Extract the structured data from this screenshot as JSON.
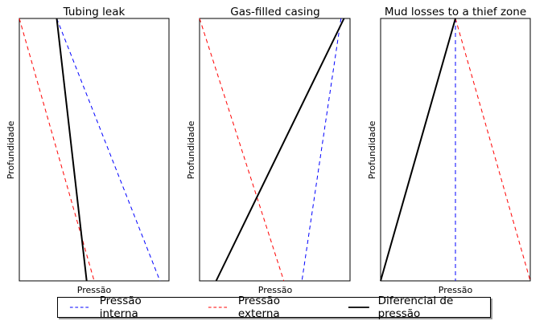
{
  "chart_data": [
    {
      "type": "line",
      "title": "Tubing leak",
      "xlabel": "Pressão",
      "ylabel": "Profundidade",
      "xlim": [
        0,
        10
      ],
      "ylim": [
        0,
        10
      ],
      "y_inverted": true,
      "series": [
        {
          "name": "Pressão interna",
          "x": [
            2.5,
            9.4
          ],
          "y": [
            0,
            10
          ],
          "color": "#0000ff",
          "style": "dashed"
        },
        {
          "name": "Pressão externa",
          "x": [
            0,
            5.0
          ],
          "y": [
            0,
            10
          ],
          "color": "#ff0000",
          "style": "dashed"
        },
        {
          "name": "Diferencial de pressão",
          "x": [
            2.5,
            4.5
          ],
          "y": [
            0,
            10
          ],
          "color": "#000000",
          "style": "solid"
        }
      ]
    },
    {
      "type": "line",
      "title": "Gas-filled casing",
      "xlabel": "Pressão",
      "ylabel": "Profundidade",
      "xlim": [
        0,
        10
      ],
      "ylim": [
        0,
        10
      ],
      "y_inverted": true,
      "series": [
        {
          "name": "Pressão interna",
          "x": [
            9.4,
            6.8
          ],
          "y": [
            0,
            10
          ],
          "color": "#0000ff",
          "style": "dashed"
        },
        {
          "name": "Pressão externa",
          "x": [
            0,
            5.6
          ],
          "y": [
            0,
            10
          ],
          "color": "#ff0000",
          "style": "dashed"
        },
        {
          "name": "Diferencial de pressão",
          "x": [
            9.6,
            1.1
          ],
          "y": [
            0,
            10
          ],
          "color": "#000000",
          "style": "solid"
        }
      ]
    },
    {
      "type": "line",
      "title": "Mud losses to a thief zone",
      "xlabel": "Pressão",
      "ylabel": "Profundidade",
      "xlim": [
        0,
        10
      ],
      "ylim": [
        0,
        10
      ],
      "y_inverted": true,
      "series": [
        {
          "name": "Pressão interna",
          "x": [
            5.0,
            5.0
          ],
          "y": [
            0,
            10
          ],
          "color": "#0000ff",
          "style": "dashed"
        },
        {
          "name": "Pressão externa",
          "x": [
            5.0,
            10.0
          ],
          "y": [
            0,
            10
          ],
          "color": "#ff0000",
          "style": "dashed"
        },
        {
          "name": "Diferencial de pressão",
          "x": [
            5.0,
            0.0
          ],
          "y": [
            0,
            10
          ],
          "color": "#000000",
          "style": "solid"
        }
      ]
    }
  ],
  "legend": {
    "items": [
      {
        "label": "Pressão interna",
        "color": "#0000ff",
        "style": "dashed"
      },
      {
        "label": "Pressão externa",
        "color": "#ff0000",
        "style": "dashed"
      },
      {
        "label": "Diferencial de pressão",
        "color": "#000000",
        "style": "solid"
      }
    ]
  }
}
